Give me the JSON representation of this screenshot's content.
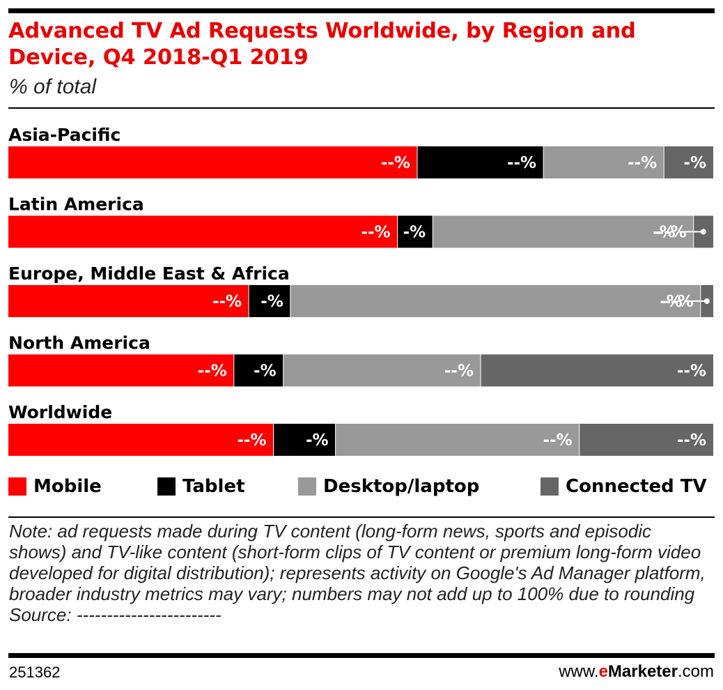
{
  "chart_data": {
    "type": "bar",
    "orientation": "horizontal",
    "stacked": true,
    "title": "Advanced TV Ad Requests Worldwide, by Region and Device, Q4 2018-Q1 2019",
    "subtitle": "% of total",
    "unit": "%",
    "categories": [
      "Asia-Pacific",
      "Latin America",
      "Europe, Middle East & Africa",
      "North America",
      "Worldwide"
    ],
    "series": [
      {
        "name": "Mobile",
        "color": "#ff0000",
        "values": [
          58.0,
          55.2,
          34.1,
          32.0,
          37.6
        ],
        "labels": [
          "--%",
          "--%",
          "--%",
          "--%",
          "--%"
        ]
      },
      {
        "name": "Tablet",
        "color": "#000000",
        "values": [
          17.9,
          5.0,
          5.9,
          7.0,
          8.8
        ],
        "labels": [
          "--%",
          "-%",
          "-%",
          "-%",
          "-%"
        ]
      },
      {
        "name": "Desktop/laptop",
        "color": "#999999",
        "values": [
          17.1,
          37.0,
          58.2,
          28.0,
          34.6
        ],
        "labels": [
          "--%",
          "--%",
          "--%",
          "--%",
          "--%"
        ]
      },
      {
        "name": "Connected TV",
        "color": "#666666",
        "values": [
          7.0,
          2.8,
          1.8,
          33.0,
          19.0
        ],
        "labels": [
          "-%",
          "",
          "",
          "--%",
          "--%"
        ]
      }
    ],
    "callouts": [
      {
        "category": "Latin America",
        "text": "-%"
      },
      {
        "category": "Europe, Middle East & Africa",
        "text": "-%"
      }
    ],
    "xlim": [
      0,
      100
    ],
    "legend_position": "bottom",
    "grid": false
  },
  "legend": {
    "items": [
      {
        "label": "Mobile",
        "color": "#ff0000"
      },
      {
        "label": "Tablet",
        "color": "#000000"
      },
      {
        "label": "Desktop/laptop",
        "color": "#999999"
      },
      {
        "label": "Connected TV",
        "color": "#666666"
      }
    ]
  },
  "note": {
    "text": "Note: ad requests made during TV content (long-form news, sports and episodic shows) and TV-like content (short-form clips of TV content or premium long-form video developed for digital distribution); represents activity on Google's Ad Manager platform, broader industry metrics may vary; numbers may not add up to 100% due to rounding",
    "source": "Source: ------------------------"
  },
  "footer": {
    "chart_id": "251362",
    "brand_prefix": "www.",
    "brand_e": "e",
    "brand_name": "Marketer",
    "brand_suffix": ".com"
  }
}
